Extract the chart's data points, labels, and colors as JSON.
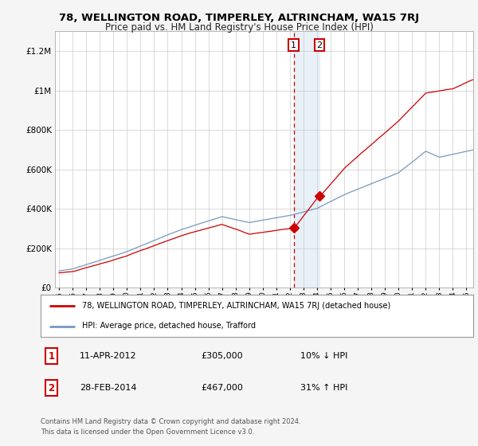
{
  "title": "78, WELLINGTON ROAD, TIMPERLEY, ALTRINCHAM, WA15 7RJ",
  "subtitle": "Price paid vs. HM Land Registry's House Price Index (HPI)",
  "legend_line1": "78, WELLINGTON ROAD, TIMPERLEY, ALTRINCHAM, WA15 7RJ (detached house)",
  "legend_line2": "HPI: Average price, detached house, Trafford",
  "sale1_label": "1",
  "sale1_date": "11-APR-2012",
  "sale1_price": "£305,000",
  "sale1_hpi": "10% ↓ HPI",
  "sale2_label": "2",
  "sale2_date": "28-FEB-2014",
  "sale2_price": "£467,000",
  "sale2_hpi": "31% ↑ HPI",
  "footer": "Contains HM Land Registry data © Crown copyright and database right 2024.\nThis data is licensed under the Open Government Licence v3.0.",
  "red_color": "#cc0000",
  "blue_color": "#7799bb",
  "background_color": "#f5f5f5",
  "plot_bg_color": "#ffffff",
  "highlight_color": "#e8f0f8",
  "dashed_line_color": "#cc0000",
  "ylim": [
    0,
    1300000
  ],
  "yticks": [
    0,
    200000,
    400000,
    600000,
    800000,
    1000000,
    1200000
  ],
  "year_start": 1995,
  "year_end": 2025,
  "sale1_year": 2012.28,
  "sale2_year": 2014.17,
  "sale1_price_val": 305000,
  "sale2_price_val": 467000
}
